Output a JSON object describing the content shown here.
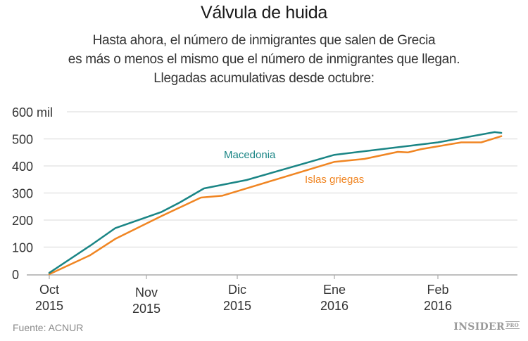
{
  "title": "Válvula de huida",
  "subtitle_lines": [
    "Hasta ahora, el número de inmigrantes que salen de Grecia",
    "es más o menos el mismo que el número de inmigrantes que llegan.",
    "Llegadas acumulativas desde octubre:"
  ],
  "footer": {
    "source": "Fuente: ACNUR",
    "logo_main": "INSIDER",
    "logo_sub": "PRO"
  },
  "chart_data": {
    "type": "line",
    "title": "Válvula de huida",
    "xlabel": "",
    "ylabel": "",
    "x_unit": "days since 2015-10-01",
    "ylim": [
      0,
      600
    ],
    "y_unit": "thousand arrivals (mil)",
    "yticks": [
      0,
      100,
      200,
      300,
      400,
      500,
      600
    ],
    "ytick_labels": [
      "0",
      "100",
      "200",
      "300",
      "400",
      "500",
      "600 mil"
    ],
    "xticks": [
      {
        "day": 0,
        "line1": "Oct",
        "line2": "2015"
      },
      {
        "day": 31,
        "line1": "Nov",
        "line2": "2015"
      },
      {
        "day": 61,
        "line1": "Dic",
        "line2": "2015"
      },
      {
        "day": 92,
        "line1": "Ene",
        "line2": "2016"
      },
      {
        "day": 123,
        "line1": "Feb",
        "line2": "2016"
      }
    ],
    "grid": true,
    "legend": "inline-labels",
    "series": [
      {
        "name": "Macedonia",
        "color": "#1a8585",
        "x": [
          0,
          13,
          21,
          36,
          42,
          50,
          64,
          92,
          115,
          123,
          140,
          142
        ],
        "values": [
          5,
          105,
          170,
          230,
          265,
          317,
          348,
          441,
          475,
          487,
          525,
          522
        ]
      },
      {
        "name": "Islas griegas",
        "color": "#f08522",
        "x": [
          0,
          13,
          21,
          36,
          49,
          56,
          92,
          101,
          111,
          114,
          118,
          130,
          136,
          142
        ],
        "values": [
          0,
          70,
          130,
          215,
          283,
          290,
          415,
          426,
          452,
          450,
          462,
          487,
          487,
          510
        ]
      }
    ]
  }
}
